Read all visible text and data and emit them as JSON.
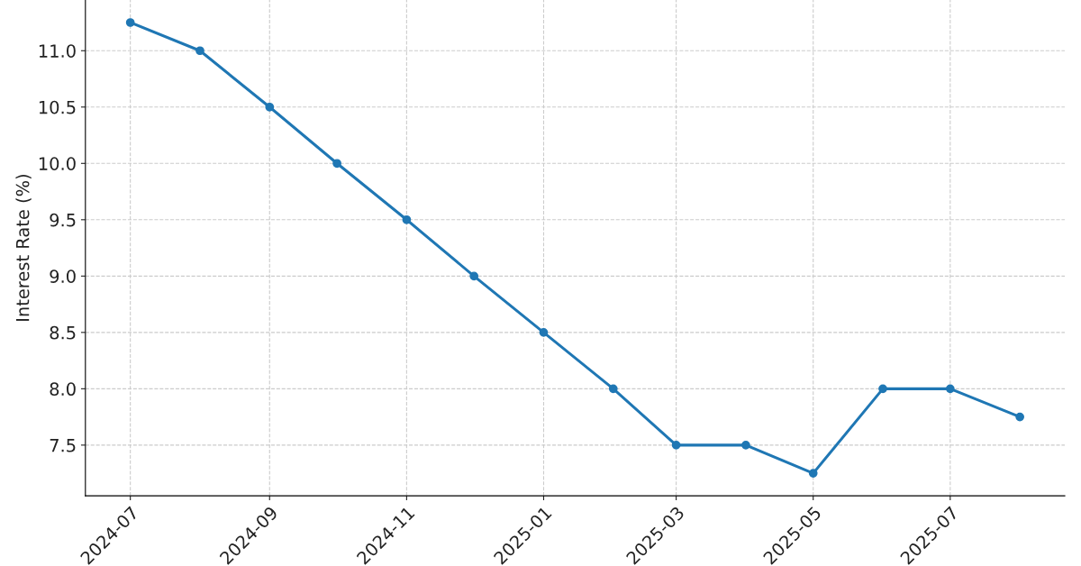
{
  "chart_data": {
    "type": "line",
    "ylabel": "Interest Rate (%)",
    "x": [
      "2024-07",
      "2024-08",
      "2024-09",
      "2024-10",
      "2024-11",
      "2024-12",
      "2025-01",
      "2025-02",
      "2025-03",
      "2025-04",
      "2025-05",
      "2025-06",
      "2025-07",
      "2025-08"
    ],
    "series": [
      {
        "color": "#1f77b4",
        "values": [
          11.25,
          11.0,
          10.5,
          10.0,
          9.5,
          9.0,
          8.5,
          8.0,
          7.5,
          7.5,
          7.25,
          8.0,
          8.0,
          7.75
        ]
      }
    ],
    "xlim": [
      "2024-06-11",
      "2025-08-21"
    ],
    "xticks": [
      "2024-07",
      "2024-09",
      "2024-11",
      "2025-01",
      "2025-03",
      "2025-05",
      "2025-07"
    ],
    "ylim": [
      7.05,
      11.45
    ],
    "yticks": [
      {
        "value": 7.5,
        "label": "7.5"
      },
      {
        "value": 8,
        "label": "8.0"
      },
      {
        "value": 8.5,
        "label": "8.5"
      },
      {
        "value": 9,
        "label": "9.0"
      },
      {
        "value": 9.5,
        "label": "9.5"
      },
      {
        "value": 10,
        "label": "10.0"
      },
      {
        "value": 10.5,
        "label": "10.5"
      },
      {
        "value": 11,
        "label": "11.0"
      }
    ],
    "grid": true,
    "marker": "circle",
    "line_style": "solid"
  }
}
